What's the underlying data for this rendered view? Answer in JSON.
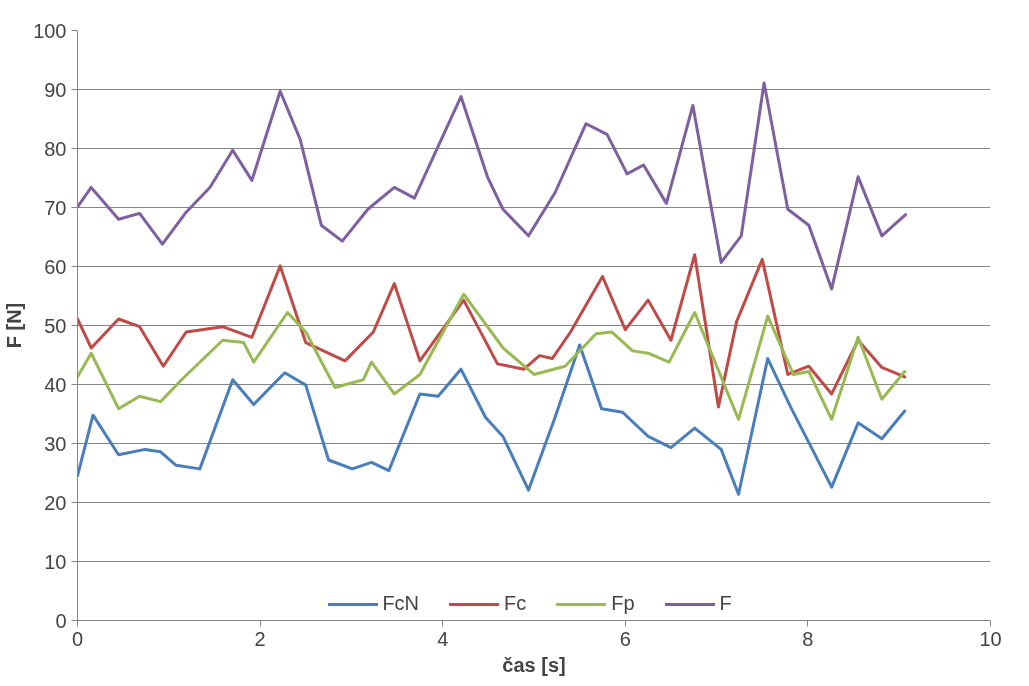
{
  "chart_data": {
    "type": "line",
    "xlabel": "čas [s]",
    "ylabel": "F [N]",
    "xlim": [
      0,
      10
    ],
    "xticks": [
      0,
      2,
      4,
      6,
      8,
      10
    ],
    "ylim": [
      0,
      100
    ],
    "yticks": [
      0,
      10,
      20,
      30,
      40,
      50,
      60,
      70,
      80,
      90,
      100
    ],
    "grid": "y",
    "legend": "bottom",
    "line_style": "solid",
    "marker": "none",
    "series": [
      {
        "name": "FcN",
        "color": "#4a7ebb",
        "x": [
          0,
          0.17,
          0.45,
          0.74,
          0.91,
          1.08,
          1.34,
          1.7,
          1.93,
          2.27,
          2.5,
          2.75,
          3.01,
          3.22,
          3.41,
          3.75,
          3.95,
          4.2,
          4.47,
          4.66,
          4.94,
          5.23,
          5.5,
          5.74,
          5.97,
          6.25,
          6.5,
          6.76,
          7.05,
          7.24,
          7.56,
          7.81,
          8.26,
          8.55,
          8.81,
          9.06
        ],
        "values": [
          24.5,
          34.8,
          28.1,
          29,
          28.6,
          26.3,
          25.7,
          40.8,
          36.6,
          42,
          39.9,
          27.2,
          25.7,
          26.8,
          25.4,
          38.4,
          38,
          42.6,
          34.4,
          31.2,
          22.1,
          34.4,
          46.7,
          35.9,
          35.3,
          31.2,
          29.3,
          32.6,
          29,
          21.4,
          44.4,
          36.2,
          22.6,
          33.5,
          30.8,
          35.5
        ]
      },
      {
        "name": "Fc",
        "color": "#be4b48",
        "x": [
          0,
          0.15,
          0.45,
          0.68,
          0.94,
          1.19,
          1.59,
          1.91,
          2.22,
          2.5,
          2.93,
          3.24,
          3.47,
          3.75,
          4.23,
          4.6,
          4.89,
          5.06,
          5.2,
          5.4,
          5.75,
          6,
          6.25,
          6.5,
          6.76,
          7.02,
          7.22,
          7.5,
          7.78,
          8.01,
          8.26,
          8.55,
          8.81,
          9.06
        ],
        "values": [
          51.1,
          46.2,
          51.1,
          49.8,
          43.1,
          48.9,
          49.8,
          48,
          60.1,
          47.1,
          44,
          48.9,
          57.1,
          44,
          54.3,
          43.5,
          42.6,
          44.9,
          44.4,
          48.9,
          58.3,
          49.3,
          54.3,
          47.5,
          62,
          36.2,
          50.7,
          61.2,
          41.7,
          43.1,
          38.4,
          47.5,
          42.9,
          41.3
        ]
      },
      {
        "name": "Fp",
        "color": "#98b954",
        "x": [
          0,
          0.15,
          0.45,
          0.68,
          0.91,
          1.14,
          1.59,
          1.82,
          1.93,
          2.3,
          2.5,
          2.82,
          3.13,
          3.22,
          3.47,
          3.75,
          4.23,
          4.66,
          5,
          5.34,
          5.68,
          5.85,
          6.08,
          6.25,
          6.48,
          6.76,
          7.24,
          7.56,
          7.84,
          8.01,
          8.26,
          8.55,
          8.81,
          9.06
        ],
        "values": [
          41.3,
          45.3,
          35.9,
          38,
          37.1,
          40.8,
          47.5,
          47.1,
          43.8,
          52.2,
          48.9,
          39.5,
          40.8,
          43.8,
          38.4,
          41.7,
          55.3,
          46.2,
          41.7,
          43.1,
          48.6,
          48.9,
          45.7,
          45.3,
          43.8,
          52.2,
          34.1,
          51.6,
          41.7,
          42.2,
          34.1,
          48,
          37.5,
          42.2
        ]
      },
      {
        "name": "F",
        "color": "#7d60a0",
        "x": [
          0,
          0.15,
          0.45,
          0.68,
          0.93,
          1.19,
          1.45,
          1.7,
          1.91,
          2.22,
          2.44,
          2.67,
          2.9,
          3.18,
          3.47,
          3.69,
          4.2,
          4.49,
          4.66,
          4.94,
          5.23,
          5.57,
          5.8,
          6.02,
          6.2,
          6.45,
          6.74,
          7.05,
          7.27,
          7.52,
          7.78,
          8.01,
          8.26,
          8.55,
          8.81,
          9.07
        ],
        "values": [
          70.1,
          73.4,
          68,
          69,
          63.8,
          69.2,
          73.4,
          79.7,
          74.6,
          89.7,
          81.5,
          67,
          64.3,
          69.7,
          73.4,
          71.6,
          88.8,
          75.2,
          69.7,
          65.2,
          72.5,
          84.2,
          82.4,
          75.7,
          77.2,
          70.7,
          87.3,
          60.7,
          65.2,
          91.1,
          69.7,
          67,
          56.2,
          75.2,
          65.2,
          68.8
        ]
      }
    ]
  }
}
